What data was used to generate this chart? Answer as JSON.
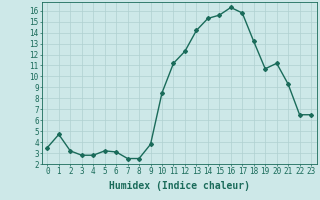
{
  "x": [
    0,
    1,
    2,
    3,
    4,
    5,
    6,
    7,
    8,
    9,
    10,
    11,
    12,
    13,
    14,
    15,
    16,
    17,
    18,
    19,
    20,
    21,
    22,
    23
  ],
  "y": [
    3.5,
    4.7,
    3.2,
    2.8,
    2.8,
    3.2,
    3.1,
    2.5,
    2.5,
    3.8,
    8.5,
    11.2,
    12.3,
    14.2,
    15.3,
    15.6,
    16.3,
    15.8,
    13.2,
    10.7,
    11.2,
    9.3,
    6.5,
    6.5
  ],
  "line_color": "#1a6b5a",
  "marker": "D",
  "marker_size": 2.0,
  "linewidth": 1.0,
  "bg_color": "#cde8e8",
  "grid_color": "#b0d0d0",
  "xlabel": "Humidex (Indice chaleur)",
  "xlim": [
    -0.5,
    23.5
  ],
  "ylim": [
    2,
    16.8
  ],
  "yticks": [
    2,
    3,
    4,
    5,
    6,
    7,
    8,
    9,
    10,
    11,
    12,
    13,
    14,
    15,
    16
  ],
  "xticks": [
    0,
    1,
    2,
    3,
    4,
    5,
    6,
    7,
    8,
    9,
    10,
    11,
    12,
    13,
    14,
    15,
    16,
    17,
    18,
    19,
    20,
    21,
    22,
    23
  ],
  "tick_color": "#1a6b5a",
  "xlabel_fontsize": 7,
  "tick_fontsize": 5.5
}
